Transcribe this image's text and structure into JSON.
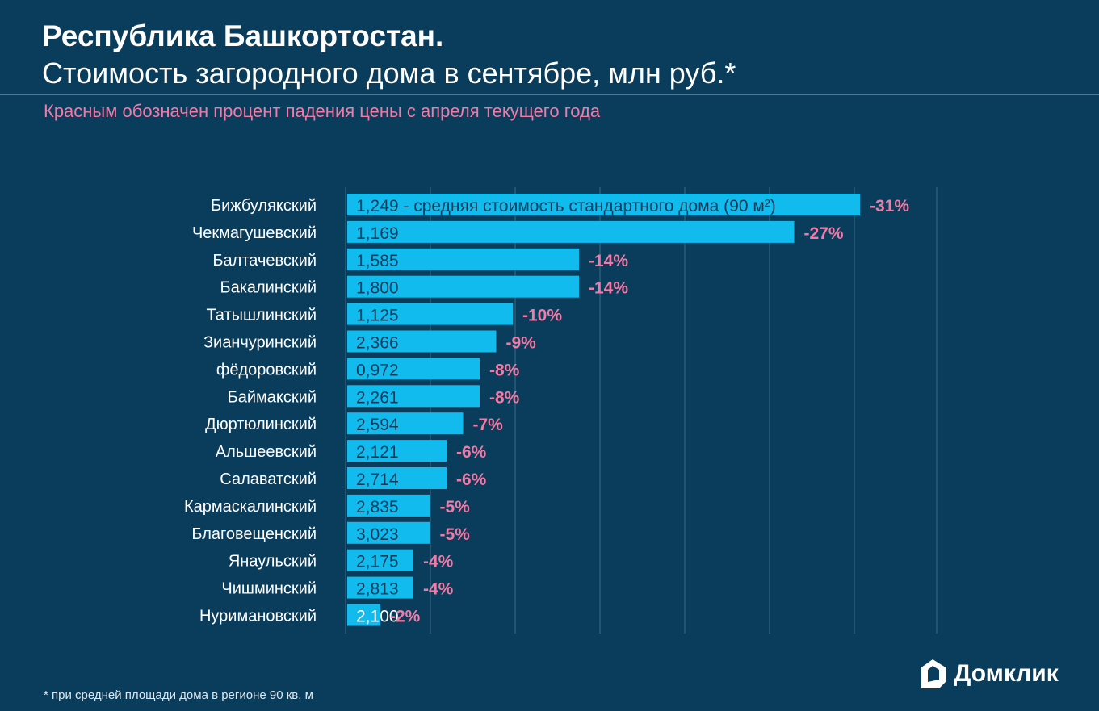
{
  "header": {
    "title": "Республика Башкортостан.",
    "subtitle": "Стоимость загородного дома в сентябре, млн руб.*",
    "note": "Красным обозначен процент падения цены с апреля текущего года"
  },
  "footnote": "* при средней площади дома в регионе 90 кв. м",
  "logo": {
    "text": "Домклик",
    "icon": "house-logo-icon"
  },
  "colors": {
    "background": "#0a3d5c",
    "bar": "#12bbee",
    "value_text": "#0a3d5c",
    "percent_text": "#f07ba6",
    "gridline": "#3c6a86"
  },
  "chart_data": {
    "type": "bar",
    "orientation": "horizontal",
    "title": "Республика Башкортостан. Стоимость загородного дома в сентябре, млн руб.*",
    "subtitle": "Красным обозначен процент падения цены с апреля текущего года",
    "categories": [
      "Бижбулякский",
      "Чекмагушевский",
      "Балтачевский",
      "Бакалинский",
      "Татышлинский",
      "Зианчуринский",
      "фёдоровский",
      "Баймакский",
      "Дюртюлинский",
      "Альшеевский",
      "Салаватский",
      "Кармаскалинский",
      "Благовещенский",
      "Янаульский",
      "Чишминский",
      "Нуримановский"
    ],
    "series": [
      {
        "name": "Падение цены с апреля, %",
        "values": [
          -31,
          -27,
          -14,
          -14,
          -10,
          -9,
          -8,
          -8,
          -7,
          -6,
          -6,
          -5,
          -5,
          -4,
          -4,
          -2
        ]
      }
    ],
    "price_labels": [
      "1,249 - средняя стоимость стандартного дома (90 м²)",
      "1,169",
      "1,585",
      "1,800",
      "1,125",
      "2,366",
      "0,972",
      "2,261",
      "2,594",
      "2,121",
      "2,714",
      "2,835",
      "3,023",
      "2,175",
      "2,813",
      "2,100"
    ],
    "percent_labels": [
      "-31%",
      "-27%",
      "-14%",
      "-14%",
      "-10%",
      "-9%",
      "-8%",
      "-8%",
      "-7%",
      "-6%",
      "-6%",
      "-5%",
      "-5%",
      "-4%",
      "-4%",
      "-2%"
    ],
    "xlim": [
      0,
      35
    ],
    "grid": true,
    "xlabel": "",
    "ylabel": ""
  }
}
